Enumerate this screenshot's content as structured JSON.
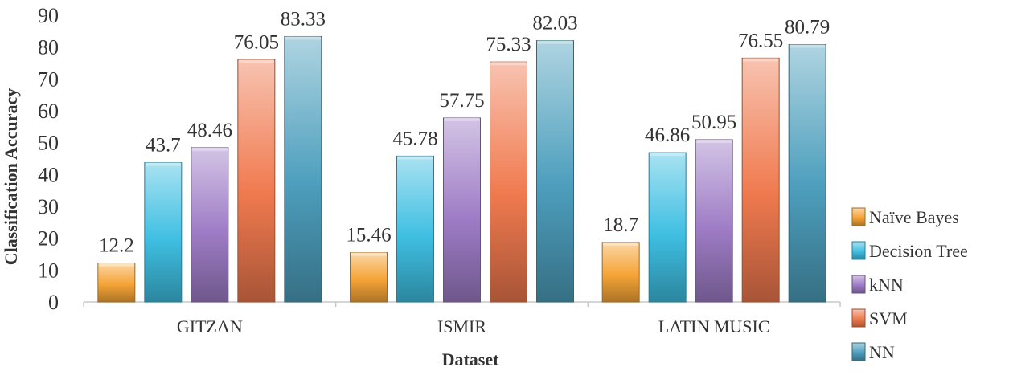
{
  "chart_data": {
    "type": "bar",
    "title": "",
    "xlabel": "Dataset",
    "ylabel": "Classification Accuracy",
    "ylim": [
      0,
      90
    ],
    "yticks": [
      0,
      10,
      20,
      30,
      40,
      50,
      60,
      70,
      80,
      90
    ],
    "categories": [
      "GITZAN",
      "ISMIR",
      "LATIN MUSIC"
    ],
    "series": [
      {
        "name": "Naïve Bayes",
        "values": [
          12.2,
          15.46,
          18.7
        ],
        "labels": [
          "12.2",
          "15.46",
          "18.7"
        ],
        "color": "#f5a436"
      },
      {
        "name": "Decision Tree",
        "values": [
          43.7,
          45.78,
          46.86
        ],
        "labels": [
          "43.7",
          "45.78",
          "46.86"
        ],
        "color": "#3fbfe2"
      },
      {
        "name": "kNN",
        "values": [
          48.46,
          57.75,
          50.95
        ],
        "labels": [
          "48.46",
          "57.75",
          "50.95"
        ],
        "color": "#9e7cc6"
      },
      {
        "name": "SVM",
        "values": [
          76.05,
          75.33,
          76.55
        ],
        "labels": [
          "76.05",
          "75.33",
          "76.55"
        ],
        "color": "#f07a4f"
      },
      {
        "name": "NN",
        "values": [
          83.33,
          82.03,
          80.79
        ],
        "labels": [
          "83.33",
          "82.03",
          "80.79"
        ],
        "color": "#4d9fbd"
      }
    ],
    "legend": "right",
    "grid": false
  }
}
